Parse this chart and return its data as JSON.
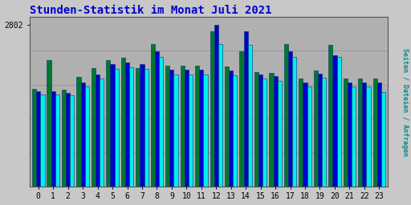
{
  "title": "Stunden-Statistik im Monat Juli 2021",
  "title_color": "#0000cc",
  "ylabel": "Seiten / Dateien / Anfragen",
  "ylabel_color": "#008888",
  "background_color": "#c8c8c8",
  "plot_bg_color": "#b0b0b0",
  "grid_color": "#999999",
  "ytick_label": "2802",
  "hours": [
    0,
    1,
    2,
    3,
    4,
    5,
    6,
    7,
    8,
    9,
    10,
    11,
    12,
    13,
    14,
    15,
    16,
    17,
    18,
    19,
    20,
    21,
    22,
    23
  ],
  "seiten": [
    1700,
    2200,
    1680,
    1900,
    2050,
    2200,
    2230,
    2050,
    2480,
    2100,
    2100,
    2100,
    2700,
    2080,
    2350,
    1990,
    1970,
    2480,
    1870,
    2020,
    2460,
    1870,
    1870,
    1870
  ],
  "dateien": [
    1650,
    1650,
    1620,
    1800,
    1950,
    2120,
    2150,
    2120,
    2350,
    2030,
    2030,
    2030,
    2802,
    2010,
    2700,
    1940,
    1910,
    2350,
    1800,
    1960,
    2280,
    1800,
    1800,
    1800
  ],
  "anfragen": [
    1600,
    1600,
    1580,
    1740,
    1880,
    2040,
    2070,
    2040,
    2250,
    1950,
    1940,
    1940,
    2480,
    1930,
    2460,
    1870,
    1840,
    2250,
    1740,
    1890,
    2250,
    1740,
    1740,
    1640
  ],
  "bar_width": 0.28,
  "seiten_color": "#007830",
  "dateien_color": "#0000cc",
  "anfragen_color": "#00eeee",
  "border_color": "#003366",
  "ylim_max": 2950,
  "fontsize_title": 10,
  "fontsize_axis": 7,
  "fontsize_ylabel": 6
}
